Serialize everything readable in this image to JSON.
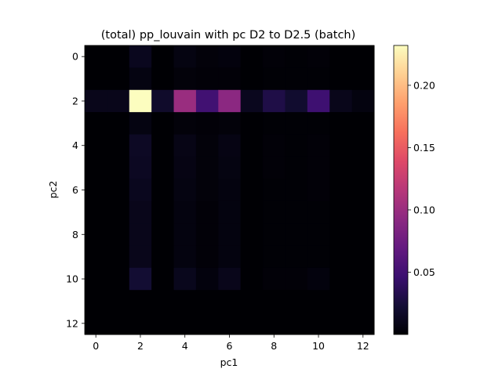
{
  "chart_data": {
    "type": "heatmap",
    "title": "(total) pp_louvain with pc D2 to D2.5 (batch)",
    "xlabel": "pc1",
    "ylabel": "pc2",
    "colormap": "magma",
    "vmin": 0.0,
    "vmax": 0.232,
    "x": [
      0,
      1,
      2,
      3,
      4,
      5,
      6,
      7,
      8,
      9,
      10,
      11,
      12
    ],
    "y": [
      0,
      1,
      2,
      3,
      4,
      5,
      6,
      7,
      8,
      9,
      10,
      11,
      12
    ],
    "xticks": [
      "0",
      "2",
      "4",
      "6",
      "8",
      "10",
      "12"
    ],
    "yticks": [
      "0",
      "2",
      "4",
      "6",
      "8",
      "10",
      "12"
    ],
    "colorbar_ticks": [
      {
        "value": 0.05,
        "label": "0.05"
      },
      {
        "value": 0.1,
        "label": "0.10"
      },
      {
        "value": 0.15,
        "label": "0.15"
      },
      {
        "value": 0.2,
        "label": "0.20"
      }
    ],
    "values": [
      [
        0.0,
        0.0,
        0.012,
        0.0,
        0.006,
        0.003,
        0.004,
        0.0,
        0.002,
        0.001,
        0.002,
        0.0,
        0.0
      ],
      [
        0.0,
        0.0,
        0.006,
        0.0,
        0.003,
        0.002,
        0.002,
        0.0,
        0.001,
        0.001,
        0.001,
        0.0,
        0.0
      ],
      [
        0.01,
        0.01,
        0.232,
        0.018,
        0.1,
        0.05,
        0.092,
        0.012,
        0.03,
        0.02,
        0.048,
        0.01,
        0.005
      ],
      [
        0.0,
        0.0,
        0.006,
        0.0,
        0.003,
        0.002,
        0.003,
        0.0,
        0.001,
        0.001,
        0.001,
        0.0,
        0.0
      ],
      [
        0.0,
        0.0,
        0.015,
        0.0,
        0.008,
        0.003,
        0.007,
        0.0,
        0.002,
        0.001,
        0.002,
        0.0,
        0.0
      ],
      [
        0.0,
        0.0,
        0.014,
        0.0,
        0.007,
        0.003,
        0.006,
        0.0,
        0.002,
        0.001,
        0.002,
        0.0,
        0.0
      ],
      [
        0.0,
        0.0,
        0.012,
        0.0,
        0.006,
        0.003,
        0.005,
        0.0,
        0.001,
        0.001,
        0.002,
        0.0,
        0.0
      ],
      [
        0.0,
        0.0,
        0.01,
        0.0,
        0.005,
        0.002,
        0.005,
        0.0,
        0.001,
        0.001,
        0.001,
        0.0,
        0.0
      ],
      [
        0.0,
        0.0,
        0.01,
        0.0,
        0.005,
        0.002,
        0.005,
        0.0,
        0.001,
        0.001,
        0.001,
        0.0,
        0.0
      ],
      [
        0.0,
        0.0,
        0.01,
        0.0,
        0.005,
        0.002,
        0.005,
        0.0,
        0.001,
        0.001,
        0.001,
        0.0,
        0.0
      ],
      [
        0.0,
        0.0,
        0.022,
        0.0,
        0.011,
        0.004,
        0.01,
        0.0,
        0.002,
        0.002,
        0.004,
        0.0,
        0.0
      ],
      [
        0.0,
        0.0,
        0.0,
        0.0,
        0.0,
        0.0,
        0.0,
        0.0,
        0.0,
        0.0,
        0.0,
        0.0,
        0.0
      ],
      [
        0.0,
        0.0,
        0.0,
        0.0,
        0.0,
        0.0,
        0.0,
        0.0,
        0.0,
        0.0,
        0.0,
        0.0,
        0.0
      ]
    ]
  }
}
